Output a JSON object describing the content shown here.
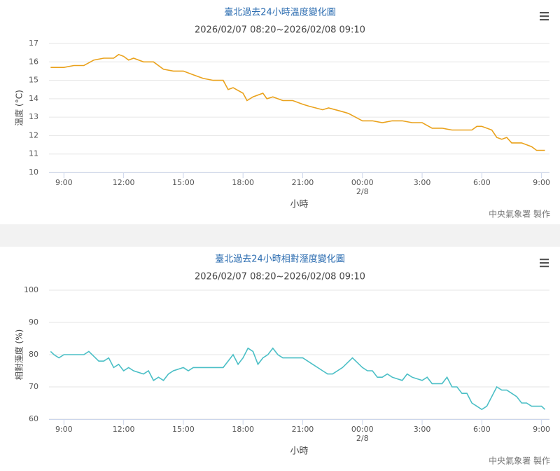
{
  "chart_data": [
    {
      "type": "line",
      "title": "臺北過去24小時溫度變化圖",
      "subtitle": "2026/02/07 08:20~2026/02/08 09:10",
      "x_label": "小時",
      "y_label": "溫度 (°C)",
      "credit": "中央氣象署 製作",
      "xlim": [
        8.25,
        33.4
      ],
      "ylim": [
        10,
        17
      ],
      "yticks": [
        10,
        11,
        12,
        13,
        14,
        15,
        16,
        17
      ],
      "grid": true,
      "xticks": [
        {
          "value": 9,
          "label": "9:00"
        },
        {
          "value": 12,
          "label": "12:00"
        },
        {
          "value": 15,
          "label": "15:00"
        },
        {
          "value": 18,
          "label": "18:00"
        },
        {
          "value": 21,
          "label": "21:00"
        },
        {
          "value": 24,
          "label": "00:00",
          "sublabel": "2/8"
        },
        {
          "value": 27,
          "label": "3:00"
        },
        {
          "value": 30,
          "label": "6:00"
        },
        {
          "value": 33,
          "label": "9:00"
        }
      ],
      "x": [
        8.33,
        9,
        9.5,
        10,
        10.5,
        11,
        11.5,
        11.75,
        12,
        12.25,
        12.5,
        13,
        13.5,
        14,
        14.5,
        15,
        15.5,
        16,
        16.5,
        17,
        17.25,
        17.5,
        18,
        18.2,
        18.5,
        19,
        19.2,
        19.5,
        20,
        20.5,
        21,
        21.3,
        22,
        22.3,
        23,
        23.3,
        24,
        24.5,
        25,
        25.5,
        26,
        26.5,
        27,
        27.5,
        28,
        28.5,
        29,
        29.5,
        29.75,
        30,
        30.5,
        30.75,
        31,
        31.25,
        31.5,
        32,
        32.5,
        32.75,
        33.17
      ],
      "series": [
        {
          "name": "溫度",
          "color": "#eaa21c",
          "values": [
            15.7,
            15.7,
            15.8,
            15.8,
            16.1,
            16.2,
            16.2,
            16.4,
            16.3,
            16.1,
            16.2,
            16.0,
            16.0,
            15.6,
            15.5,
            15.5,
            15.3,
            15.1,
            15.0,
            15.0,
            14.5,
            14.6,
            14.3,
            13.9,
            14.1,
            14.3,
            14.0,
            14.1,
            13.9,
            13.9,
            13.7,
            13.6,
            13.4,
            13.5,
            13.3,
            13.2,
            12.8,
            12.8,
            12.7,
            12.8,
            12.8,
            12.7,
            12.7,
            12.4,
            12.4,
            12.3,
            12.3,
            12.3,
            12.5,
            12.5,
            12.3,
            11.9,
            11.8,
            11.9,
            11.6,
            11.6,
            11.4,
            11.2,
            11.2
          ]
        }
      ]
    },
    {
      "type": "line",
      "title": "臺北過去24小時相對溼度變化圖",
      "subtitle": "2026/02/07 08:20~2026/02/08 09:10",
      "x_label": "小時",
      "y_label": "相對溼度 (%)",
      "credit": "中央氣象署 製作",
      "xlim": [
        8.25,
        33.4
      ],
      "ylim": [
        60,
        100
      ],
      "yticks": [
        60,
        70,
        80,
        90,
        100
      ],
      "grid": true,
      "xticks": [
        {
          "value": 9,
          "label": "9:00"
        },
        {
          "value": 12,
          "label": "12:00"
        },
        {
          "value": 15,
          "label": "15:00"
        },
        {
          "value": 18,
          "label": "18:00"
        },
        {
          "value": 21,
          "label": "21:00"
        },
        {
          "value": 24,
          "label": "00:00",
          "sublabel": "2/8"
        },
        {
          "value": 27,
          "label": "3:00"
        },
        {
          "value": 30,
          "label": "6:00"
        },
        {
          "value": 33,
          "label": "9:00"
        }
      ],
      "x": [
        8.33,
        8.5,
        8.75,
        9,
        9.5,
        10,
        10.25,
        10.75,
        11,
        11.25,
        11.5,
        11.75,
        12,
        12.25,
        12.5,
        13,
        13.25,
        13.5,
        13.75,
        14,
        14.25,
        14.5,
        15,
        15.25,
        15.5,
        16,
        16.5,
        17,
        17.25,
        17.5,
        17.75,
        18,
        18.25,
        18.5,
        18.75,
        19,
        19.25,
        19.5,
        19.75,
        20,
        20.5,
        21,
        21.25,
        21.5,
        22,
        22.25,
        22.5,
        23,
        23.5,
        24,
        24.25,
        24.5,
        24.75,
        25,
        25.25,
        25.5,
        26,
        26.25,
        26.5,
        27,
        27.25,
        27.5,
        28,
        28.25,
        28.5,
        28.75,
        29,
        29.25,
        29.5,
        29.75,
        30,
        30.25,
        30.5,
        30.75,
        31,
        31.25,
        31.5,
        31.75,
        32,
        32.25,
        32.5,
        33,
        33.17
      ],
      "series": [
        {
          "name": "相對溼度",
          "color": "#4bbfc6",
          "values": [
            81,
            80,
            79,
            80,
            80,
            80,
            81,
            78,
            78,
            79,
            76,
            77,
            75,
            76,
            75,
            74,
            75,
            72,
            73,
            72,
            74,
            75,
            76,
            75,
            76,
            76,
            76,
            76,
            78,
            80,
            77,
            79,
            82,
            81,
            77,
            79,
            80,
            82,
            80,
            79,
            79,
            79,
            78,
            77,
            75,
            74,
            74,
            76,
            79,
            76,
            75,
            75,
            73,
            73,
            74,
            73,
            72,
            74,
            73,
            72,
            73,
            71,
            71,
            73,
            70,
            70,
            68,
            68,
            65,
            64,
            63,
            64,
            67,
            70,
            69,
            69,
            68,
            67,
            65,
            65,
            64,
            64,
            63
          ]
        }
      ]
    }
  ]
}
